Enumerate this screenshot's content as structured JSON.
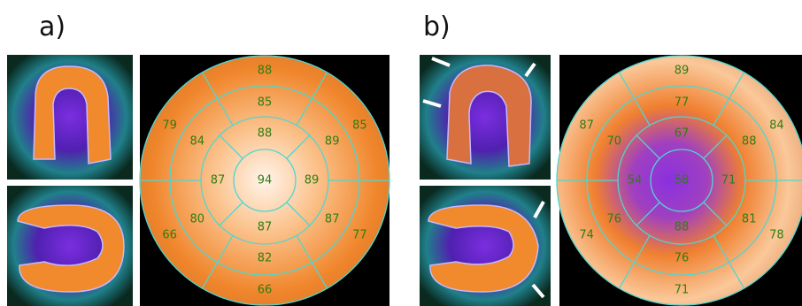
{
  "panels": [
    {
      "label": "a)",
      "segments": {
        "outer": [
          88,
          85,
          77,
          66,
          66,
          79
        ],
        "mid": [
          85,
          89,
          87,
          82,
          80,
          84
        ],
        "inner": [
          88,
          89,
          87,
          87
        ],
        "apex": 94
      }
    },
    {
      "label": "b)",
      "segments": {
        "outer": [
          89,
          84,
          78,
          71,
          74,
          87
        ],
        "mid": [
          77,
          88,
          81,
          76,
          76,
          70
        ],
        "inner": [
          67,
          71,
          88,
          54
        ],
        "apex": 58
      }
    }
  ]
}
